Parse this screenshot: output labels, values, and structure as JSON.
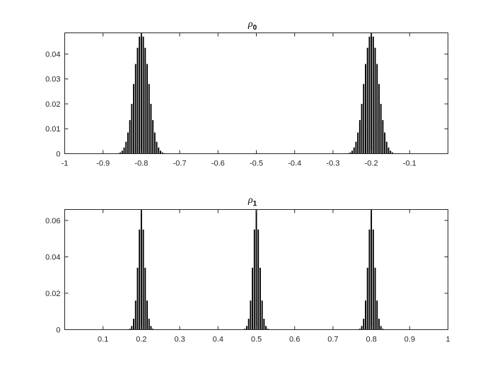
{
  "chart_data": [
    {
      "type": "bar",
      "title": "ρ",
      "title_subscript": "0",
      "xlabel": "",
      "ylabel": "",
      "xlim": [
        -1,
        0
      ],
      "ylim": [
        0,
        0.0485
      ],
      "xticks": [
        -1,
        -0.9,
        -0.8,
        -0.7,
        -0.6,
        -0.5,
        -0.4,
        -0.3,
        -0.2,
        -0.1
      ],
      "xtick_labels": [
        "-1",
        "-0.9",
        "-0.8",
        "-0.7",
        "-0.6",
        "-0.5",
        "-0.4",
        "-0.3",
        "-0.2",
        "-0.1"
      ],
      "yticks": [
        0,
        0.01,
        0.02,
        0.03,
        0.04
      ],
      "ytick_labels": [
        "0",
        "0.01",
        "0.02",
        "0.03",
        "0.04"
      ],
      "grid": false,
      "bar_color": "#000000",
      "series": [
        {
          "x": [
            -0.86,
            -0.855,
            -0.85,
            -0.845,
            -0.84,
            -0.835,
            -0.83,
            -0.825,
            -0.82,
            -0.815,
            -0.81,
            -0.805,
            -0.8,
            -0.795,
            -0.79,
            -0.785,
            -0.78,
            -0.775,
            -0.77,
            -0.765,
            -0.76,
            -0.755,
            -0.75,
            -0.745,
            -0.74
          ],
          "values": [
            0.0002,
            0.0005,
            0.0012,
            0.0025,
            0.0048,
            0.0085,
            0.0135,
            0.02,
            0.028,
            0.036,
            0.0425,
            0.047,
            0.0485,
            0.047,
            0.0425,
            0.036,
            0.028,
            0.02,
            0.0135,
            0.0085,
            0.0048,
            0.0025,
            0.0012,
            0.0005,
            0.0002
          ]
        },
        {
          "x": [
            -0.26,
            -0.255,
            -0.25,
            -0.245,
            -0.24,
            -0.235,
            -0.23,
            -0.225,
            -0.22,
            -0.215,
            -0.21,
            -0.205,
            -0.2,
            -0.195,
            -0.19,
            -0.185,
            -0.18,
            -0.175,
            -0.17,
            -0.165,
            -0.16,
            -0.155,
            -0.15,
            -0.145,
            -0.14
          ],
          "values": [
            0.0002,
            0.0005,
            0.0012,
            0.0025,
            0.0048,
            0.0085,
            0.0135,
            0.02,
            0.028,
            0.036,
            0.0425,
            0.047,
            0.0485,
            0.047,
            0.0425,
            0.036,
            0.028,
            0.02,
            0.0135,
            0.0085,
            0.0048,
            0.0025,
            0.0012,
            0.0005,
            0.0002
          ]
        }
      ]
    },
    {
      "type": "bar",
      "title": "ρ",
      "title_subscript": "1",
      "xlabel": "",
      "ylabel": "",
      "xlim": [
        0,
        1
      ],
      "ylim": [
        0,
        0.066
      ],
      "xticks": [
        0.1,
        0.2,
        0.3,
        0.4,
        0.5,
        0.6,
        0.7,
        0.8,
        0.9,
        1
      ],
      "xtick_labels": [
        "0.1",
        "0.2",
        "0.3",
        "0.4",
        "0.5",
        "0.6",
        "0.7",
        "0.8",
        "0.9",
        "1"
      ],
      "yticks": [
        0,
        0.02,
        0.04,
        0.06
      ],
      "ytick_labels": [
        "0",
        "0.02",
        "0.04",
        "0.06"
      ],
      "grid": false,
      "bar_color": "#000000",
      "series": [
        {
          "x": [
            0.17,
            0.175,
            0.18,
            0.185,
            0.19,
            0.195,
            0.2,
            0.205,
            0.21,
            0.215,
            0.22,
            0.225,
            0.23
          ],
          "values": [
            0.0005,
            0.002,
            0.006,
            0.016,
            0.034,
            0.055,
            0.066,
            0.055,
            0.034,
            0.016,
            0.006,
            0.002,
            0.0005
          ]
        },
        {
          "x": [
            0.47,
            0.475,
            0.48,
            0.485,
            0.49,
            0.495,
            0.5,
            0.505,
            0.51,
            0.515,
            0.52,
            0.525,
            0.53
          ],
          "values": [
            0.0005,
            0.002,
            0.006,
            0.016,
            0.034,
            0.055,
            0.066,
            0.055,
            0.034,
            0.016,
            0.006,
            0.002,
            0.0005
          ]
        },
        {
          "x": [
            0.77,
            0.775,
            0.78,
            0.785,
            0.79,
            0.795,
            0.8,
            0.805,
            0.81,
            0.815,
            0.82,
            0.825,
            0.83
          ],
          "values": [
            0.0005,
            0.002,
            0.006,
            0.016,
            0.034,
            0.055,
            0.066,
            0.055,
            0.034,
            0.016,
            0.006,
            0.002,
            0.0005
          ]
        }
      ]
    }
  ]
}
